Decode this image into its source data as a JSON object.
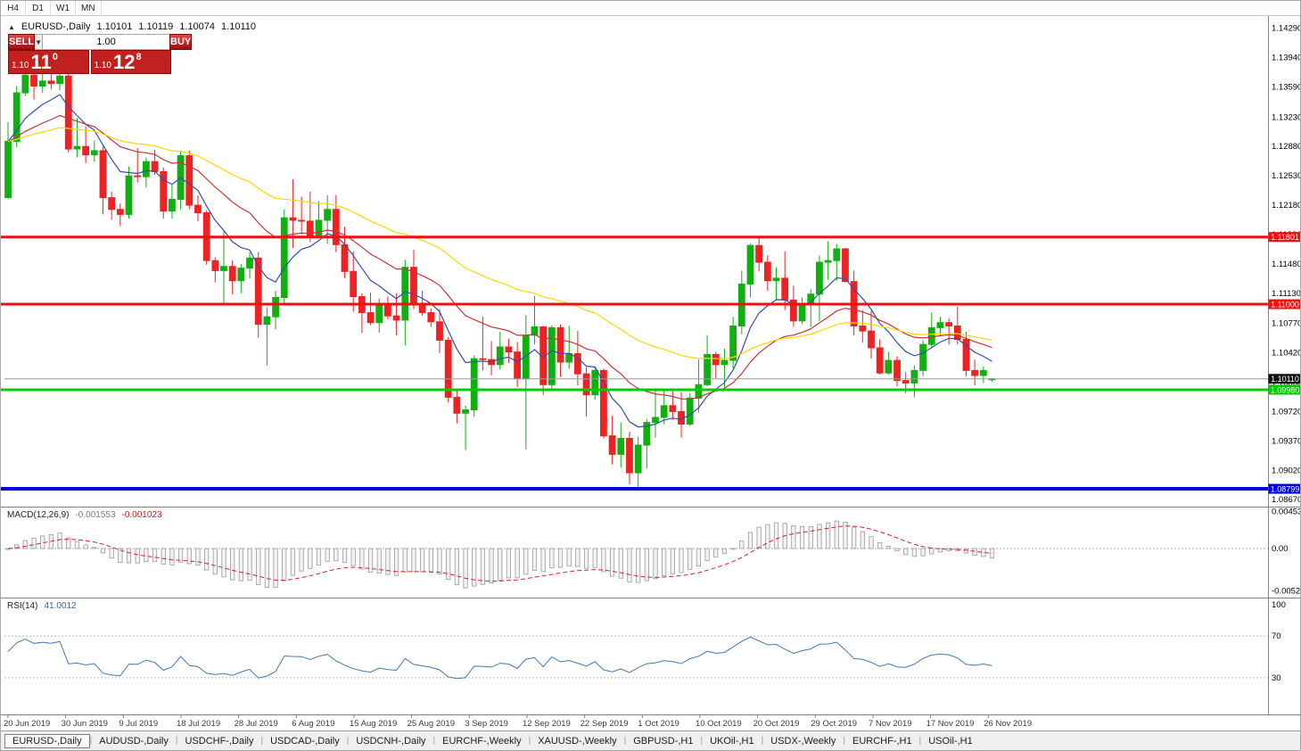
{
  "toolbar": {
    "timeframes": [
      "H4",
      "D1",
      "W1",
      "MN"
    ]
  },
  "icons": {
    "collapse": "▲",
    "dropdown": "▼"
  },
  "chart_header": {
    "symbol": "EURUSD-,Daily",
    "open": "1.10101",
    "high": "1.10119",
    "low": "1.10074",
    "close": "1.10110"
  },
  "trade_panel": {
    "sell_label": "SELL",
    "buy_label": "BUY",
    "volume": "1.00",
    "bid": {
      "prefix": "1.10",
      "big": "11",
      "sup": "0"
    },
    "ask": {
      "prefix": "1.10",
      "big": "12",
      "sup": "8"
    }
  },
  "indicators": {
    "macd": {
      "name": "MACD(12,26,9)",
      "value1": "-0.001553",
      "value2": "-0.001023"
    },
    "rsi": {
      "name": "RSI(14)",
      "value": "41.0012"
    }
  },
  "chart_data": {
    "type": "candlestick",
    "symbol": "EURUSD-",
    "timeframe": "Daily",
    "up_color": "#10b010",
    "down_color": "#ee2222",
    "price_axis_labels": [
      "1.14290",
      "1.13940",
      "1.13590",
      "1.13230",
      "1.12880",
      "1.12530",
      "1.12180",
      "1.11830",
      "1.11480",
      "1.11130",
      "1.10770",
      "1.10420",
      "1.10060",
      "1.09720",
      "1.09370",
      "1.09020",
      "1.08670"
    ],
    "hlines": [
      {
        "price": 1.11801,
        "label": "1.11801",
        "color": "#ee1111",
        "width": 3
      },
      {
        "price": 1.11,
        "label": "1.11000",
        "color": "#ee1111",
        "width": 3
      },
      {
        "price": 1.0998,
        "label": "1.09980",
        "color": "#00cc00",
        "width": 3
      },
      {
        "price": 1.08799,
        "label": "1.08799",
        "color": "#0000e0",
        "width": 4
      }
    ],
    "current_price": {
      "value": 1.1011,
      "label": "1.10110",
      "line_color": "#9a9a9a",
      "tag_bg": "#111111"
    },
    "moving_averages": [
      {
        "period": 8,
        "type": "ema",
        "color": "#2f4fae"
      },
      {
        "period": 21,
        "type": "ema",
        "color": "#cc3333"
      },
      {
        "period": 45,
        "type": "ema",
        "color": "#ffd700"
      }
    ],
    "macd": {
      "params": [
        12,
        26,
        9
      ],
      "axis_labels": [
        "0.004536",
        "0.00",
        "-0.005203"
      ],
      "hist_fill": "#f2f2f2",
      "hist_stroke": "#9a9aa2",
      "signal_color": "#d92323"
    },
    "rsi": {
      "period": 14,
      "levels": [
        70,
        30
      ],
      "axis_labels": [
        "100",
        "70",
        "30"
      ],
      "line_color": "#4379b2"
    },
    "x_ticks": [
      {
        "label": "20 Jun 2019",
        "index": 0
      },
      {
        "label": "30 Jun 2019",
        "index": 6.68
      },
      {
        "label": "9 Jul 2019",
        "index": 13.36
      },
      {
        "label": "18 Jul 2019",
        "index": 20.04
      },
      {
        "label": "28 Jul 2019",
        "index": 26.72
      },
      {
        "label": "6 Aug 2019",
        "index": 33.4
      },
      {
        "label": "15 Aug 2019",
        "index": 40.08
      },
      {
        "label": "25 Aug 2019",
        "index": 46.76
      },
      {
        "label": "3 Sep 2019",
        "index": 53.44
      },
      {
        "label": "12 Sep 2019",
        "index": 60.12
      },
      {
        "label": "22 Sep 2019",
        "index": 66.8
      },
      {
        "label": "1 Oct 2019",
        "index": 73.48
      },
      {
        "label": "10 Oct 2019",
        "index": 80.16
      },
      {
        "label": "20 Oct 2019",
        "index": 86.84
      },
      {
        "label": "29 Oct 2019",
        "index": 93.52
      },
      {
        "label": "7 Nov 2019",
        "index": 100.2
      },
      {
        "label": "17 Nov 2019",
        "index": 106.88
      },
      {
        "label": "26 Nov 2019",
        "index": 113.56
      }
    ],
    "candles": [
      [
        1.1227,
        1.1317,
        1.1226,
        1.1294
      ],
      [
        1.1294,
        1.136,
        1.1287,
        1.1352
      ],
      [
        1.1352,
        1.1378,
        1.1348,
        1.1373
      ],
      [
        1.1373,
        1.1382,
        1.1344,
        1.136
      ],
      [
        1.136,
        1.1375,
        1.1352,
        1.1366
      ],
      [
        1.1366,
        1.1377,
        1.1356,
        1.1363
      ],
      [
        1.1363,
        1.138,
        1.1355,
        1.1372
      ],
      [
        1.1372,
        1.1376,
        1.1281,
        1.1285
      ],
      [
        1.1285,
        1.1322,
        1.1275,
        1.1288
      ],
      [
        1.1288,
        1.1312,
        1.1268,
        1.1278
      ],
      [
        1.1278,
        1.1295,
        1.127,
        1.1283
      ],
      [
        1.1283,
        1.1288,
        1.1207,
        1.1227
      ],
      [
        1.1227,
        1.1234,
        1.1201,
        1.1213
      ],
      [
        1.1213,
        1.122,
        1.1193,
        1.1207
      ],
      [
        1.1207,
        1.1264,
        1.1202,
        1.1253
      ],
      [
        1.1253,
        1.1286,
        1.1245,
        1.1252
      ],
      [
        1.1252,
        1.1275,
        1.1239,
        1.127
      ],
      [
        1.127,
        1.1284,
        1.1254,
        1.1258
      ],
      [
        1.1258,
        1.1263,
        1.1202,
        1.1211
      ],
      [
        1.1211,
        1.1243,
        1.1202,
        1.1225
      ],
      [
        1.1225,
        1.1282,
        1.1213,
        1.1277
      ],
      [
        1.1277,
        1.1283,
        1.1213,
        1.1218
      ],
      [
        1.1218,
        1.123,
        1.1199,
        1.1209
      ],
      [
        1.1209,
        1.1212,
        1.1147,
        1.1152
      ],
      [
        1.1152,
        1.1156,
        1.1126,
        1.114
      ],
      [
        1.114,
        1.1187,
        1.1101,
        1.1145
      ],
      [
        1.1145,
        1.1152,
        1.1112,
        1.1128
      ],
      [
        1.1128,
        1.1148,
        1.1113,
        1.1143
      ],
      [
        1.1143,
        1.1162,
        1.1131,
        1.1155
      ],
      [
        1.1155,
        1.1162,
        1.106,
        1.1076
      ],
      [
        1.1076,
        1.1096,
        1.1027,
        1.1085
      ],
      [
        1.1085,
        1.1116,
        1.107,
        1.1108
      ],
      [
        1.1108,
        1.1213,
        1.1101,
        1.1203
      ],
      [
        1.1203,
        1.1249,
        1.1167,
        1.12
      ],
      [
        1.12,
        1.1228,
        1.1183,
        1.1199
      ],
      [
        1.1199,
        1.1234,
        1.1174,
        1.118
      ],
      [
        1.118,
        1.1223,
        1.1178,
        1.12
      ],
      [
        1.12,
        1.123,
        1.1172,
        1.1213
      ],
      [
        1.1213,
        1.123,
        1.1162,
        1.1171
      ],
      [
        1.1171,
        1.1192,
        1.1131,
        1.1139
      ],
      [
        1.1139,
        1.1163,
        1.1091,
        1.1109
      ],
      [
        1.1109,
        1.1113,
        1.1066,
        1.109
      ],
      [
        1.109,
        1.1114,
        1.1075,
        1.1078
      ],
      [
        1.1078,
        1.1107,
        1.1066,
        1.1099
      ],
      [
        1.1099,
        1.1109,
        1.1082,
        1.1086
      ],
      [
        1.1086,
        1.1113,
        1.1063,
        1.1081
      ],
      [
        1.1081,
        1.1153,
        1.1051,
        1.1144
      ],
      [
        1.1144,
        1.1165,
        1.1094,
        1.1101
      ],
      [
        1.1101,
        1.1116,
        1.1086,
        1.109
      ],
      [
        1.109,
        1.1095,
        1.1073,
        1.1079
      ],
      [
        1.1079,
        1.1094,
        1.1042,
        1.1057
      ],
      [
        1.1057,
        1.1061,
        1.0983,
        1.0989
      ],
      [
        1.0989,
        1.0998,
        1.0958,
        1.097
      ],
      [
        1.097,
        1.0979,
        1.0926,
        1.0974
      ],
      [
        1.0974,
        1.1039,
        1.0966,
        1.1035
      ],
      [
        1.1035,
        1.1085,
        1.1021,
        1.1034
      ],
      [
        1.1034,
        1.1056,
        1.1015,
        1.1028
      ],
      [
        1.1028,
        1.1067,
        1.1022,
        1.1049
      ],
      [
        1.1049,
        1.1059,
        1.103,
        1.1043
      ],
      [
        1.1043,
        1.1055,
        1.1001,
        1.1011
      ],
      [
        1.1011,
        1.1087,
        1.0927,
        1.1063
      ],
      [
        1.1063,
        1.111,
        1.1052,
        1.1073
      ],
      [
        1.1073,
        1.1073,
        1.0992,
        1.1004
      ],
      [
        1.1004,
        1.1075,
        1.0997,
        1.1072
      ],
      [
        1.1072,
        1.1076,
        1.1013,
        1.1031
      ],
      [
        1.1031,
        1.1074,
        1.1023,
        1.1041
      ],
      [
        1.1041,
        1.1068,
        1.1003,
        1.1017
      ],
      [
        1.1017,
        1.1025,
        1.0966,
        1.0992
      ],
      [
        1.0992,
        1.1024,
        1.0986,
        1.1021
      ],
      [
        1.1021,
        1.1023,
        1.094,
        1.0943
      ],
      [
        1.0943,
        1.0967,
        1.0909,
        1.0921
      ],
      [
        1.0921,
        1.0959,
        1.0905,
        1.094
      ],
      [
        1.094,
        1.0948,
        1.0885,
        1.0899
      ],
      [
        1.0899,
        1.0942,
        1.0879,
        1.0932
      ],
      [
        1.0932,
        1.0963,
        1.0904,
        1.0959
      ],
      [
        1.0959,
        1.0999,
        1.0941,
        1.0965
      ],
      [
        1.0965,
        1.0999,
        1.0957,
        1.0979
      ],
      [
        1.0979,
        1.0996,
        1.0962,
        1.0972
      ],
      [
        1.0972,
        1.0995,
        1.0941,
        1.0957
      ],
      [
        1.0957,
        1.0994,
        1.0955,
        1.0988
      ],
      [
        1.0988,
        1.1034,
        1.0971,
        1.1004
      ],
      [
        1.1004,
        1.1063,
        1.1002,
        1.104
      ],
      [
        1.104,
        1.1043,
        1.1012,
        1.1028
      ],
      [
        1.1028,
        1.1047,
        1.1001,
        1.1033
      ],
      [
        1.1033,
        1.1085,
        1.1023,
        1.1074
      ],
      [
        1.1074,
        1.114,
        1.1064,
        1.1124
      ],
      [
        1.1124,
        1.1172,
        1.1108,
        1.117
      ],
      [
        1.117,
        1.1179,
        1.1139,
        1.115
      ],
      [
        1.115,
        1.1158,
        1.1116,
        1.1128
      ],
      [
        1.1128,
        1.1144,
        1.1106,
        1.1131
      ],
      [
        1.1131,
        1.1163,
        1.1093,
        1.1105
      ],
      [
        1.1105,
        1.1122,
        1.1073,
        1.108
      ],
      [
        1.108,
        1.1108,
        1.1076,
        1.1099
      ],
      [
        1.1099,
        1.1118,
        1.1073,
        1.1112
      ],
      [
        1.1112,
        1.1158,
        1.108,
        1.115
      ],
      [
        1.115,
        1.1175,
        1.1129,
        1.1152
      ],
      [
        1.1152,
        1.1172,
        1.1128,
        1.1166
      ],
      [
        1.1166,
        1.1167,
        1.1126,
        1.1127
      ],
      [
        1.1127,
        1.114,
        1.1063,
        1.1074
      ],
      [
        1.1074,
        1.1093,
        1.1054,
        1.1068
      ],
      [
        1.1068,
        1.1092,
        1.1035,
        1.1048
      ],
      [
        1.1048,
        1.1058,
        1.1016,
        1.1018
      ],
      [
        1.1018,
        1.1043,
        1.1016,
        1.1033
      ],
      [
        1.1033,
        1.1038,
        1.1002,
        1.1009
      ],
      [
        1.1009,
        1.1019,
        1.0994,
        1.1006
      ],
      [
        1.1006,
        1.1027,
        1.0989,
        1.1021
      ],
      [
        1.1021,
        1.1057,
        1.1014,
        1.1052
      ],
      [
        1.1052,
        1.109,
        1.1048,
        1.1072
      ],
      [
        1.1072,
        1.1085,
        1.1063,
        1.1078
      ],
      [
        1.1078,
        1.1083,
        1.1052,
        1.1074
      ],
      [
        1.1074,
        1.1097,
        1.1052,
        1.1058
      ],
      [
        1.1058,
        1.1067,
        1.1014,
        1.1021
      ],
      [
        1.1021,
        1.1034,
        1.1003,
        1.1015
      ],
      [
        1.1015,
        1.1026,
        1.1006,
        1.1021
      ],
      [
        1.10101,
        1.10119,
        1.10074,
        1.1011
      ]
    ]
  },
  "bottom_tabs": {
    "active_index": 0,
    "items": [
      "EURUSD-,Daily",
      "AUDUSD-,Daily",
      "USDCHF-,Daily",
      "USDCAD-,Daily",
      "USDCNH-,Daily",
      "EURCHF-,Weekly",
      "XAUUSD-,Weekly",
      "GBPUSD-,H1",
      "UKOil-,H1",
      "USDX-,Weekly",
      "EURCHF-,H1",
      "USOil-,H1"
    ]
  }
}
